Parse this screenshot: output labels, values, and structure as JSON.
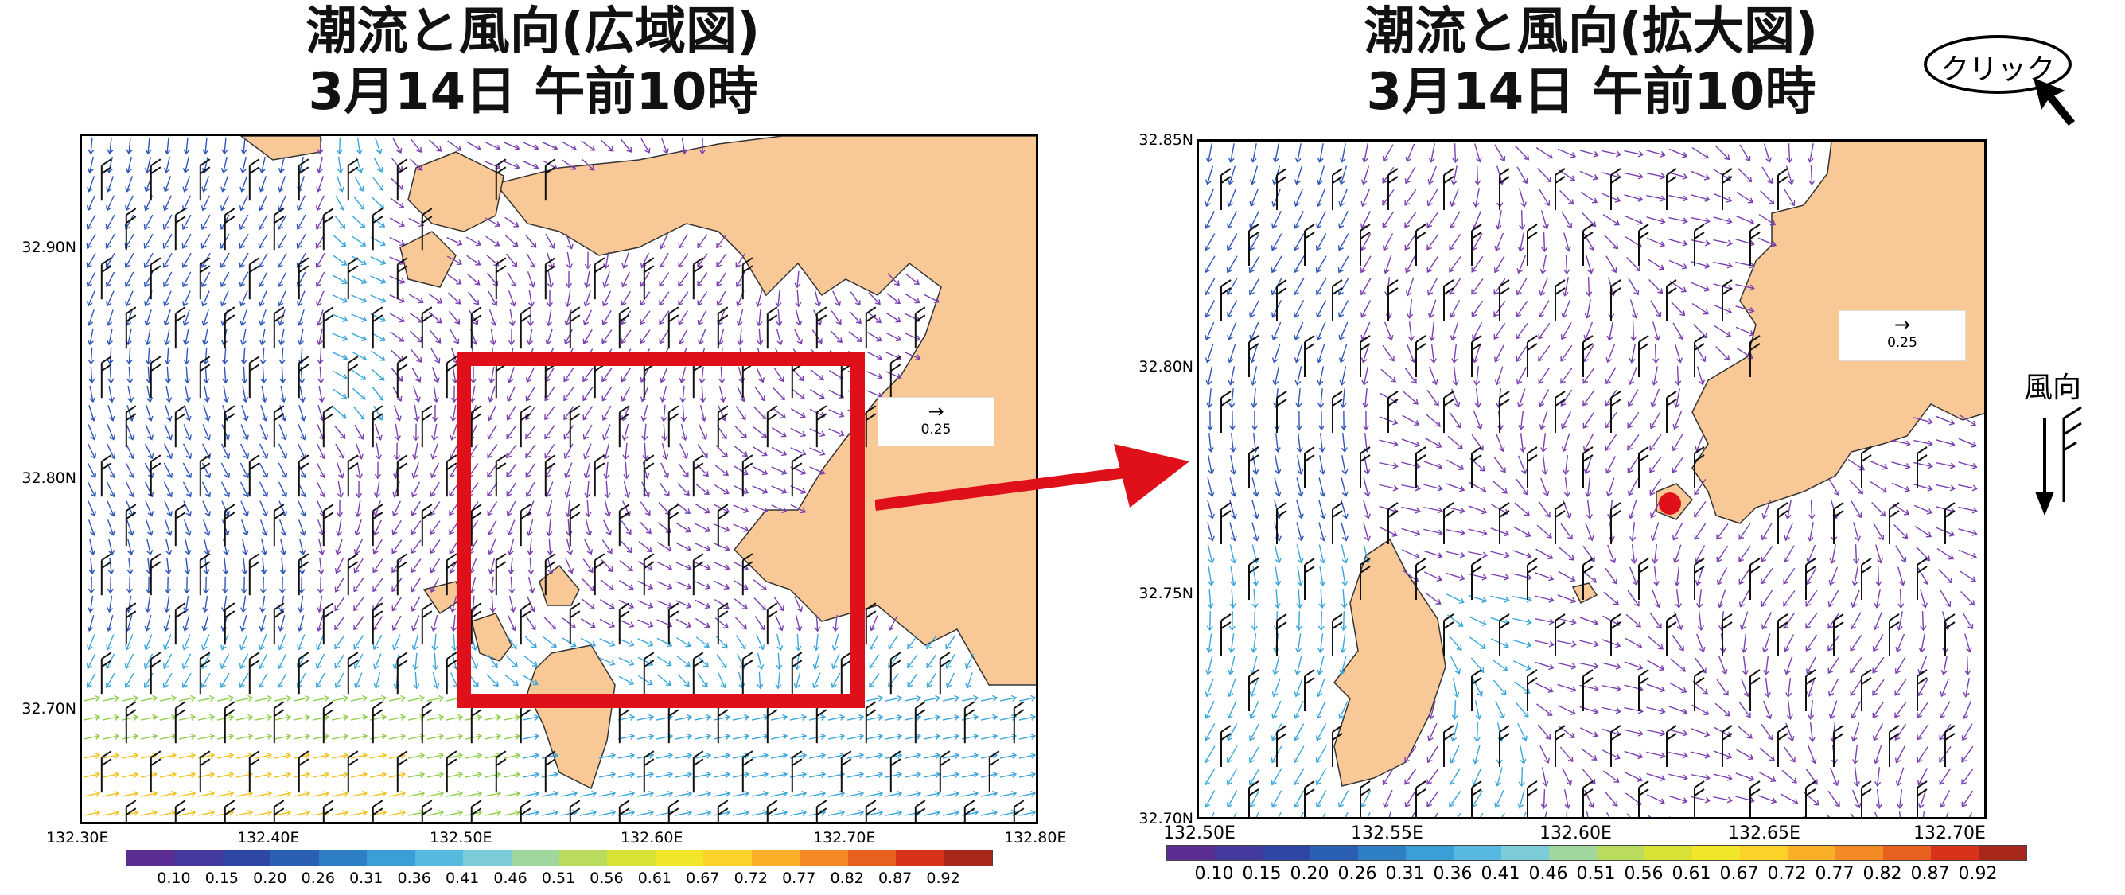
{
  "left": {
    "title_line1": "潮流と風向(広域図)",
    "title_line2": "3月14日 午前10時",
    "y_ticks": [
      "32.90N",
      "32.80N",
      "32.70N"
    ],
    "x_ticks": [
      "132.30E",
      "132.40E",
      "132.50E",
      "132.60E",
      "132.70E",
      "132.80E"
    ],
    "reference_value": "0.25",
    "zoom_box_color": "#e0101a"
  },
  "right": {
    "title_line1": "潮流と風向(拡大図)",
    "title_line2": "3月14日 午前10時",
    "y_ticks": [
      "32.85N",
      "32.80N",
      "32.75N",
      "32.70N"
    ],
    "x_ticks": [
      "132.50E",
      "132.55E",
      "132.60E",
      "132.65E",
      "132.70E"
    ],
    "reference_value": "0.25",
    "marker_color": "#e0101a"
  },
  "colorbar": {
    "labels": [
      "0.10",
      "0.15",
      "0.20",
      "0.26",
      "0.31",
      "0.36",
      "0.41",
      "0.46",
      "0.51",
      "0.56",
      "0.61",
      "0.67",
      "0.72",
      "0.77",
      "0.82",
      "0.87",
      "0.92"
    ],
    "colors": [
      "#5b2c91",
      "#44399d",
      "#2e47a6",
      "#2a5fb5",
      "#2f7fc5",
      "#3a9fd6",
      "#55b9e0",
      "#7ccbd8",
      "#9fd79f",
      "#b9dc5f",
      "#d7e235",
      "#f1e62a",
      "#fbd12a",
      "#f9af28",
      "#f48a24",
      "#e8601e",
      "#d8321a",
      "#a8261a"
    ]
  },
  "legend": {
    "click_label": "クリック",
    "wind_label": "風向"
  },
  "colors": {
    "land": "#f8c896",
    "coast": "#333333",
    "arrow_purple": "#7a3fb0",
    "arrow_blue": "#2f56b8",
    "arrow_cyan": "#3aa6dc",
    "arrow_yellow": "#f2c21c",
    "arrow_green": "#8fcf4a",
    "red": "#e0101a"
  }
}
